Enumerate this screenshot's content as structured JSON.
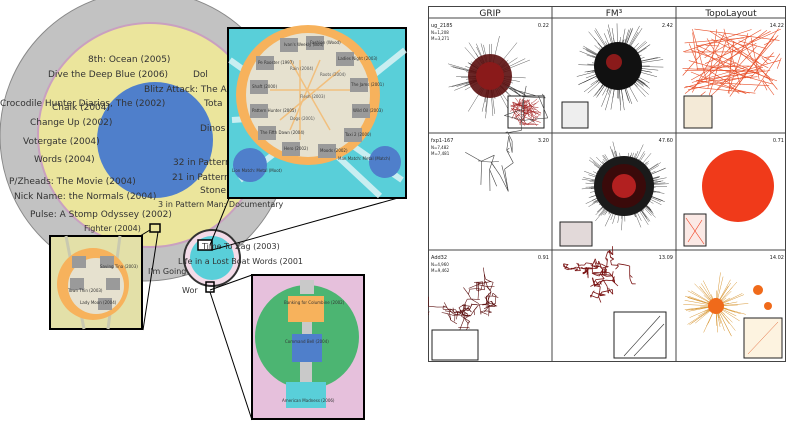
{
  "left_figure": {
    "outer_labels": [
      "8th: Ocean (2005)",
      "Dive the Deep Blue (2006)",
      "Dol",
      "Crocodile Hunter Diaries, The (2002)",
      "Blitz Attack: The An",
      "Change Up (2002)",
      "Chalk (2004)",
      "Tota",
      "Votergate (2004)",
      "Words (2004)",
      "Dinos",
      "32 in Pattern",
      "21 in Pattern",
      "P/Zheads: The Movie (2004)",
      "Nick Name: the Normals (2004)",
      "Stone",
      "Pulse: A Stomp Odyssey (2002)",
      "3 in Pattern Man: Documentary",
      "Fighter (2004)",
      "Time To Zag (2003)",
      "Life in a Lost Boat Words (2001",
      "I'm Going",
      "Wor"
    ],
    "inset_top_labels": [
      "Ivan's Weekly (Bod)",
      "Fashion (Wood)",
      "Pe Rooster (1997)",
      "Ladies Night (2003)",
      "Shaft (2000)",
      "The Jams (2001)",
      "Pattern Hunter (2005)",
      "Wild Oil (2003)",
      "The Fifth Dawn (2004)",
      "Taxi 2 (2000)",
      "Hero (2002)",
      "Moods (2002)",
      "Rain (2004)",
      "Flesh (2003)",
      "Dogs (2001)",
      "Roots (2004)",
      "Lion Match: Metal (Moot)",
      "Man Match: Metal (Match)"
    ],
    "inset_left_labels": [
      "Saving Tina (2003)",
      "Town Thin (2003)",
      "Lady Moon (2004)"
    ],
    "inset_bottom_labels": [
      "Banking for Columbine (2002)",
      "Command Bell (2004)",
      "American Madness (2006)"
    ]
  },
  "grid": {
    "columns": [
      "GRIP",
      "FM³",
      "TopoLayout"
    ],
    "rows": [
      {
        "name": "ug_2185",
        "stats": [
          "N=1,208",
          "M=3,271"
        ],
        "times": [
          "0.22",
          "2.42",
          "14.22"
        ]
      },
      {
        "name": "fxp1-167",
        "stats": [
          "N=7,482",
          "M=7,481"
        ],
        "times": [
          "3.20",
          "47.60",
          "0.71"
        ]
      },
      {
        "name": "Add32",
        "stats": [
          "N=4,960",
          "M=9,462"
        ],
        "times": [
          "0.91",
          "13.09",
          "14.02"
        ]
      }
    ]
  },
  "colors": {
    "outer_ring": "#c2c2c2",
    "yellow_ring": "#ebe59c",
    "blue_disc": "#4f7fcb",
    "cyan_panel": "#59cfd9",
    "orange_region": "#f7b25c",
    "pink_panel": "#e6c0dc",
    "green_disc": "#4cb572",
    "grip_red": "#7a1414",
    "fm3_dark": "#1a1a1a",
    "topo_red": "#f03a1a"
  }
}
